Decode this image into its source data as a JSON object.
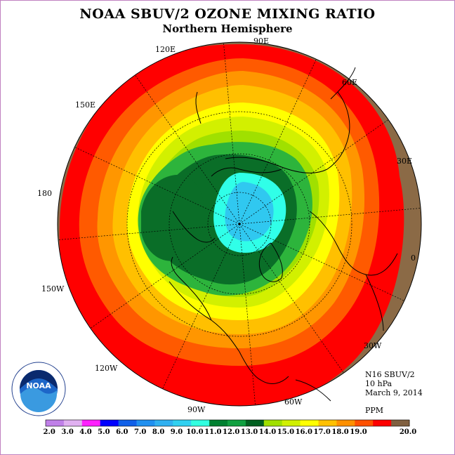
{
  "title": "NOAA SBUV/2 OZONE MIXING RATIO",
  "subtitle": "Northern Hemisphere",
  "info": {
    "instrument": "N16 SBUV/2",
    "pressure_level": "10 hPa",
    "date": "March 9, 2014",
    "units": "PPM"
  },
  "longitude_labels": [
    "90E",
    "60E",
    "30E",
    "0",
    "30W",
    "60W",
    "90W",
    "120W",
    "150W",
    "180",
    "150E",
    "120E"
  ],
  "logo": {
    "text": "NOAA",
    "ring_text": "NATIONAL OCEANIC AND ATMOSPHERIC ADMINISTRATION",
    "ring_text_bottom": "U.S. DEPARTMENT OF COMMERCE"
  },
  "colorbar": {
    "labels": [
      "2.0",
      "3.0",
      "4.0",
      "5.0",
      "6.0",
      "7.0",
      "8.0",
      "9.0",
      "10.0",
      "11.0",
      "12.0",
      "13.0",
      "14.0",
      "15.0",
      "16.0",
      "17.0",
      "18.0",
      "19.0",
      "20.0"
    ],
    "colors": [
      "#c080e8",
      "#e0b0f0",
      "#ff20ff",
      "#0000ff",
      "#1060e8",
      "#2090f0",
      "#30b0f0",
      "#30d0f0",
      "#30ffe0",
      "#008030",
      "#10a040",
      "#006020",
      "#a0e000",
      "#d0f000",
      "#ffff00",
      "#ffc000",
      "#ff9000",
      "#ff5000",
      "#ff0000",
      "#806040"
    ]
  },
  "legend_colors": {
    "outer_brown": "#8b6a46",
    "red": "#ff0000",
    "orange_red": "#ff5a00",
    "orange": "#ff9600",
    "amber": "#ffc000",
    "yellow": "#ffff00",
    "yellow_green": "#d2f000",
    "light_green": "#a0e000",
    "green": "#2db43c",
    "dark_green": "#0a6e28",
    "cyan": "#30ffe8",
    "light_blue": "#30c8f0"
  }
}
